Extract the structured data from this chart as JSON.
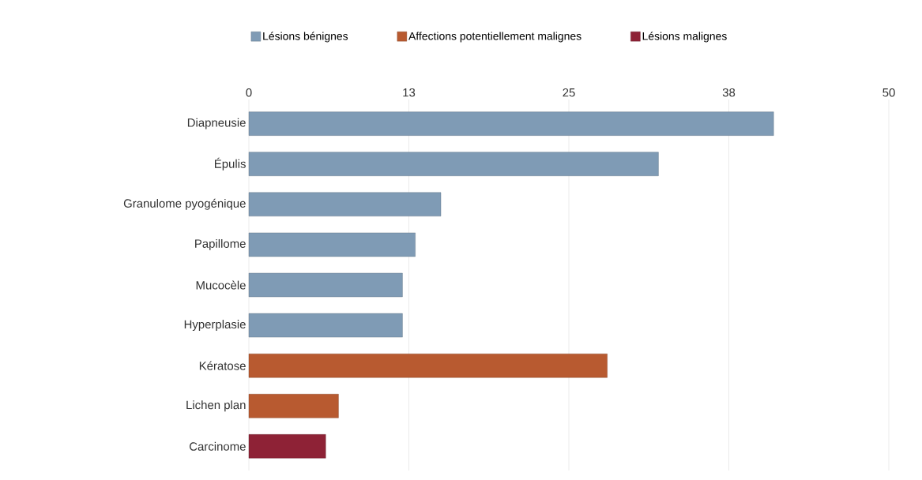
{
  "chart_data": {
    "type": "bar",
    "orientation": "horizontal",
    "categories": [
      "Diapneusie",
      "Épulis",
      "Granulome pyogénique",
      "Papillome",
      "Mucocèle",
      "Hyperplasie",
      "Kératose",
      "Lichen plan",
      "Carcinome"
    ],
    "series": [
      {
        "name": "Lésions bénignes",
        "color": "#7f9bb5",
        "values": [
          41,
          32,
          15,
          13,
          12,
          12,
          null,
          null,
          null
        ]
      },
      {
        "name": "Affections potentiellement malignes",
        "color": "#b85a30",
        "values": [
          null,
          null,
          null,
          null,
          null,
          null,
          28,
          7,
          null
        ]
      },
      {
        "name": "Lésions malignes",
        "color": "#8e2236",
        "values": [
          null,
          null,
          null,
          null,
          null,
          null,
          null,
          null,
          6
        ]
      }
    ],
    "xlim": [
      0,
      50
    ],
    "xticks": [
      0,
      {
        "value": 12.5,
        "label": "13"
      },
      25,
      {
        "value": 37.5,
        "label": "38"
      },
      50
    ],
    "grid": "x",
    "legend": "top"
  }
}
